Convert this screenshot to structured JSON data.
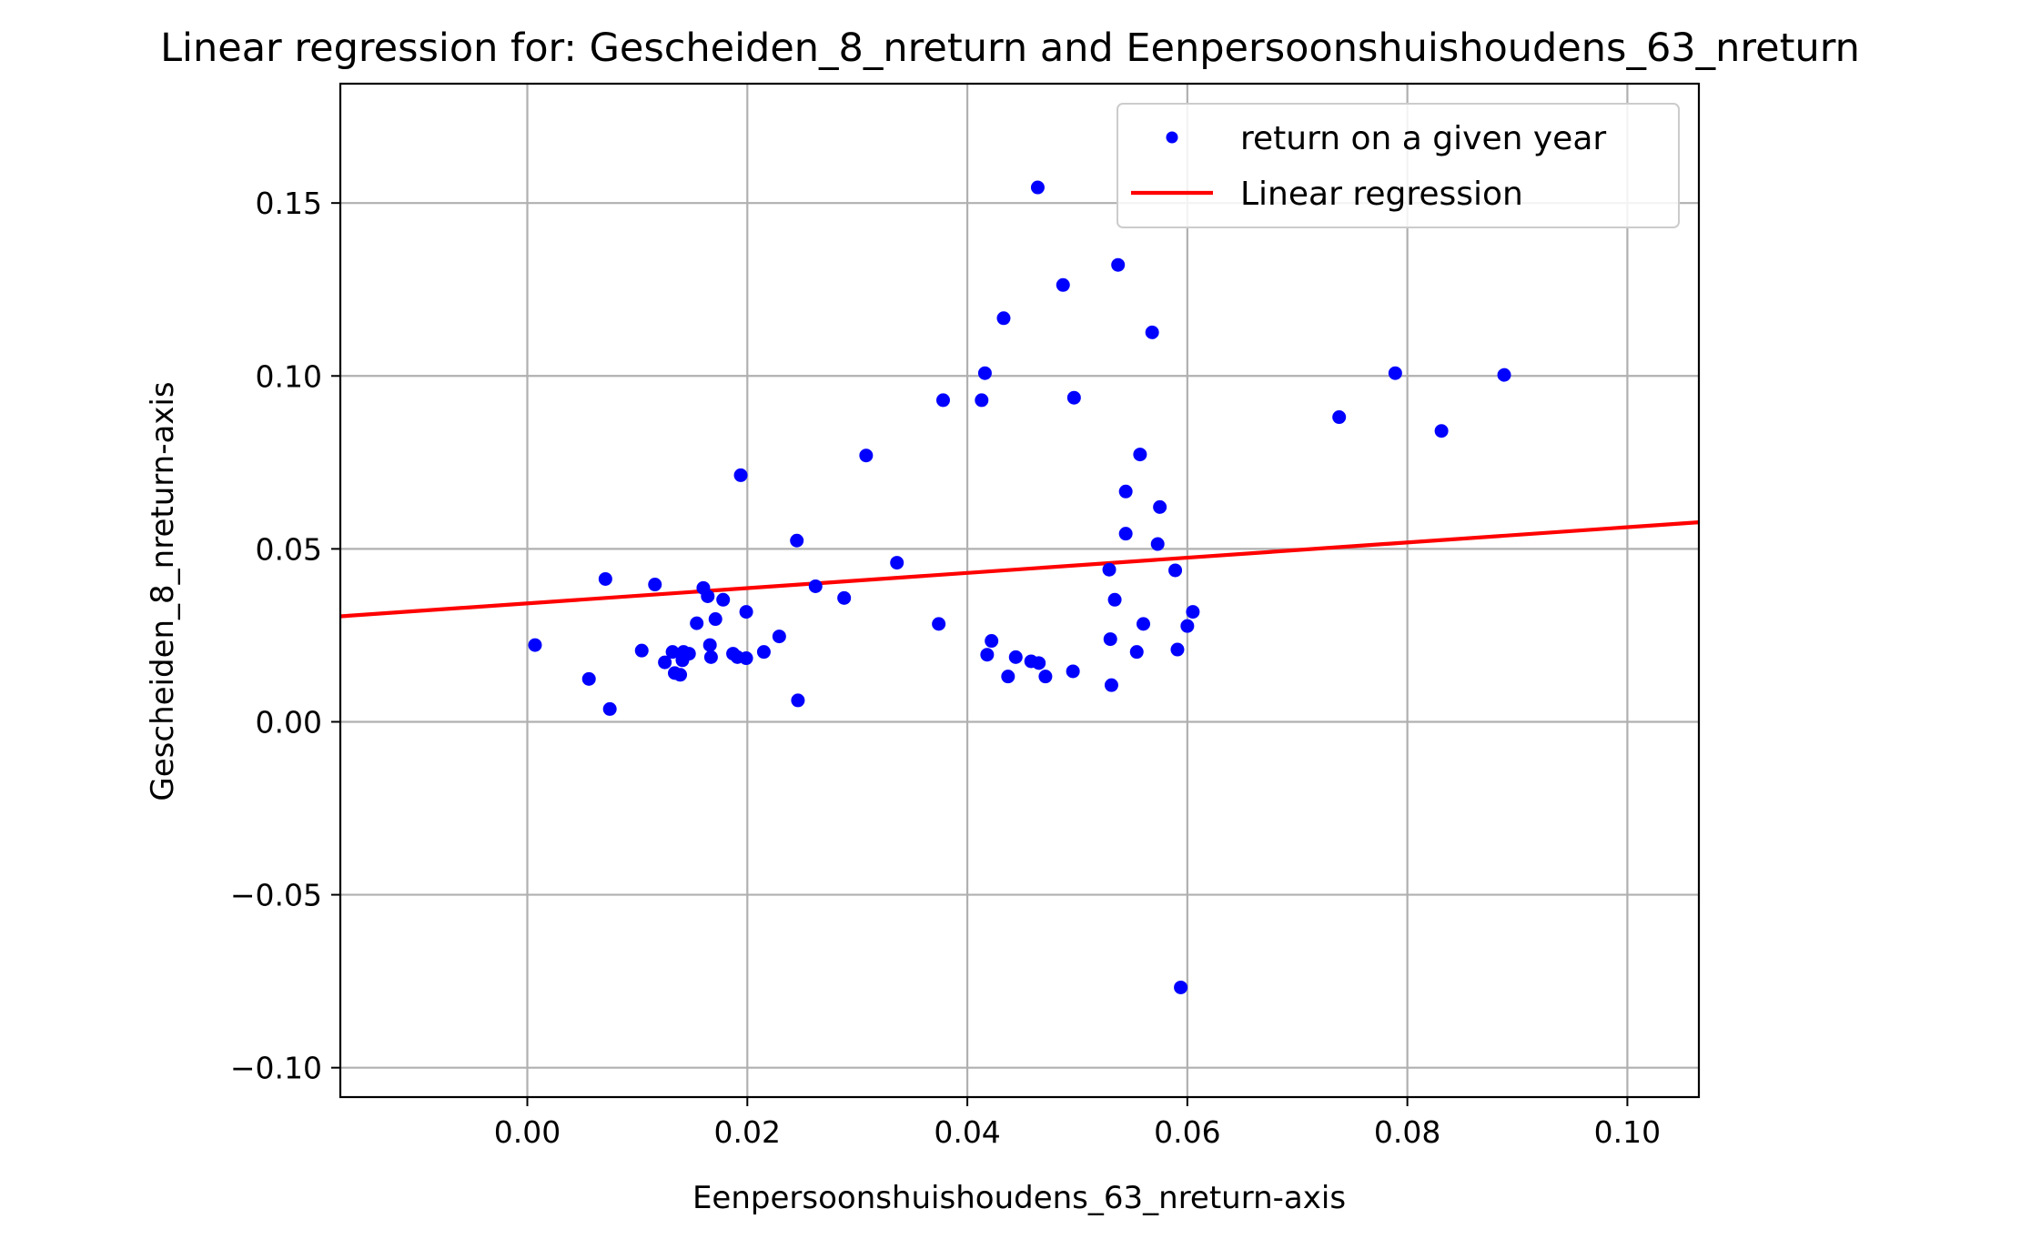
{
  "chart_data": {
    "type": "scatter",
    "title": "Linear regression for: Gescheiden_8_nreturn and Eenpersoonshuishoudens_63_nreturn",
    "xlabel": "Eenpersoonshuishoudens_63_nreturn-axis",
    "ylabel": "Gescheiden_8_nreturn-axis",
    "xlim": [
      -0.017,
      0.1065
    ],
    "ylim": [
      -0.1085,
      0.1845
    ],
    "xticks": [
      0.0,
      0.02,
      0.04,
      0.06,
      0.08,
      0.1
    ],
    "xtick_labels": [
      "0.00",
      "0.02",
      "0.04",
      "0.06",
      "0.08",
      "0.10"
    ],
    "yticks": [
      -0.1,
      -0.05,
      0.0,
      0.05,
      0.1,
      0.15
    ],
    "ytick_labels": [
      "−0.10",
      "−0.05",
      "0.00",
      "0.05",
      "0.10",
      "0.15"
    ],
    "grid": true,
    "legend": {
      "position": "top-right",
      "entries": [
        "return on a given year",
        "Linear regression"
      ]
    },
    "colors": {
      "points": "#0000ff",
      "regression": "#ff0000"
    },
    "series": [
      {
        "name": "return on a given year",
        "kind": "scatter",
        "points": [
          [
            0.0007,
            0.0222
          ],
          [
            0.0056,
            0.0124
          ],
          [
            0.0071,
            0.0413
          ],
          [
            0.0075,
            0.0037
          ],
          [
            0.0104,
            0.0206
          ],
          [
            0.0116,
            0.0397
          ],
          [
            0.0125,
            0.0172
          ],
          [
            0.0132,
            0.0202
          ],
          [
            0.0134,
            0.0141
          ],
          [
            0.0139,
            0.0136
          ],
          [
            0.0141,
            0.0178
          ],
          [
            0.0142,
            0.0202
          ],
          [
            0.0147,
            0.0197
          ],
          [
            0.0154,
            0.0285
          ],
          [
            0.016,
            0.0387
          ],
          [
            0.0164,
            0.0363
          ],
          [
            0.0166,
            0.0222
          ],
          [
            0.0167,
            0.0187
          ],
          [
            0.0171,
            0.0297
          ],
          [
            0.0178,
            0.0353
          ],
          [
            0.0187,
            0.0197
          ],
          [
            0.0191,
            0.0187
          ],
          [
            0.0194,
            0.0713
          ],
          [
            0.0199,
            0.0184
          ],
          [
            0.0199,
            0.0318
          ],
          [
            0.0215,
            0.0202
          ],
          [
            0.0229,
            0.0247
          ],
          [
            0.0245,
            0.0524
          ],
          [
            0.0246,
            0.0062
          ],
          [
            0.0262,
            0.0392
          ],
          [
            0.0288,
            0.0358
          ],
          [
            0.0308,
            0.077
          ],
          [
            0.0336,
            0.046
          ],
          [
            0.0374,
            0.0283
          ],
          [
            0.0378,
            0.093
          ],
          [
            0.0413,
            0.093
          ],
          [
            0.0416,
            0.1008
          ],
          [
            0.0418,
            0.0194
          ],
          [
            0.0422,
            0.0234
          ],
          [
            0.0433,
            0.1167
          ],
          [
            0.0437,
            0.0131
          ],
          [
            0.0444,
            0.0187
          ],
          [
            0.0458,
            0.0175
          ],
          [
            0.0464,
            0.1545
          ],
          [
            0.0465,
            0.017
          ],
          [
            0.0471,
            0.0131
          ],
          [
            0.0487,
            0.1263
          ],
          [
            0.0496,
            0.0146
          ],
          [
            0.0497,
            0.0937
          ],
          [
            0.0529,
            0.044
          ],
          [
            0.053,
            0.0239
          ],
          [
            0.0531,
            0.0106
          ],
          [
            0.0534,
            0.0353
          ],
          [
            0.0537,
            0.1321
          ],
          [
            0.0544,
            0.0666
          ],
          [
            0.0544,
            0.0544
          ],
          [
            0.0554,
            0.0202
          ],
          [
            0.0557,
            0.0773
          ],
          [
            0.056,
            0.0283
          ],
          [
            0.0568,
            0.1126
          ],
          [
            0.0573,
            0.0514
          ],
          [
            0.0575,
            0.0621
          ],
          [
            0.0589,
            0.0438
          ],
          [
            0.0591,
            0.0209
          ],
          [
            0.0594,
            -0.0768
          ],
          [
            0.06,
            0.0277
          ],
          [
            0.0605,
            0.0318
          ],
          [
            0.0738,
            0.0881
          ],
          [
            0.0789,
            0.1008
          ],
          [
            0.0831,
            0.0841
          ],
          [
            0.0888,
            0.1003
          ]
        ]
      },
      {
        "name": "Linear regression",
        "kind": "line",
        "points": [
          [
            -0.017,
            0.0305
          ],
          [
            0.1065,
            0.0577
          ]
        ]
      }
    ]
  }
}
